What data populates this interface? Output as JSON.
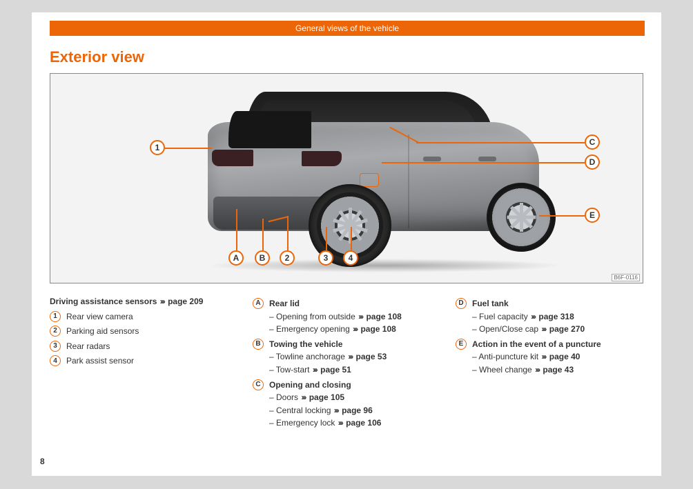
{
  "header": "General views of the vehicle",
  "section_title": "Exterior view",
  "fig_code": "B6F-0116",
  "page_number": "8",
  "accent": "#ec6608",
  "callouts": {
    "num": [
      "1",
      "2",
      "3",
      "4"
    ],
    "let": [
      "A",
      "B",
      "C",
      "D",
      "E"
    ]
  },
  "col1": {
    "lead_text": "Driving assistance sensors",
    "lead_page": "page 209",
    "items": [
      {
        "mark": "1",
        "text": "Rear view camera"
      },
      {
        "mark": "2",
        "text": "Parking aid sensors"
      },
      {
        "mark": "3",
        "text": "Rear radars"
      },
      {
        "mark": "4",
        "text": "Park assist sensor"
      }
    ]
  },
  "col2": {
    "groups": [
      {
        "mark": "A",
        "title": "Rear lid",
        "subs": [
          {
            "text": "Opening from outside",
            "page": "page 108"
          },
          {
            "text": "Emergency opening",
            "page": "page 108"
          }
        ]
      },
      {
        "mark": "B",
        "title": "Towing the vehicle",
        "subs": [
          {
            "text": "Towline anchorage",
            "page": "page 53"
          },
          {
            "text": "Tow-start",
            "page": "page 51"
          }
        ]
      },
      {
        "mark": "C",
        "title": "Opening and closing",
        "subs": [
          {
            "text": "Doors",
            "page": "page 105"
          },
          {
            "text": "Central locking",
            "page": "page 96"
          },
          {
            "text": "Emergency lock",
            "page": "page 106"
          }
        ]
      }
    ]
  },
  "col3": {
    "groups": [
      {
        "mark": "D",
        "title": "Fuel tank",
        "subs": [
          {
            "text": "Fuel capacity",
            "page": "page 318"
          },
          {
            "text": "Open/Close cap",
            "page": "page 270"
          }
        ]
      },
      {
        "mark": "E",
        "title": "Action in the event of a puncture",
        "subs": [
          {
            "text": "Anti-puncture kit",
            "page": "page 40"
          },
          {
            "text": "Wheel change",
            "page": "page 43"
          }
        ]
      }
    ]
  }
}
